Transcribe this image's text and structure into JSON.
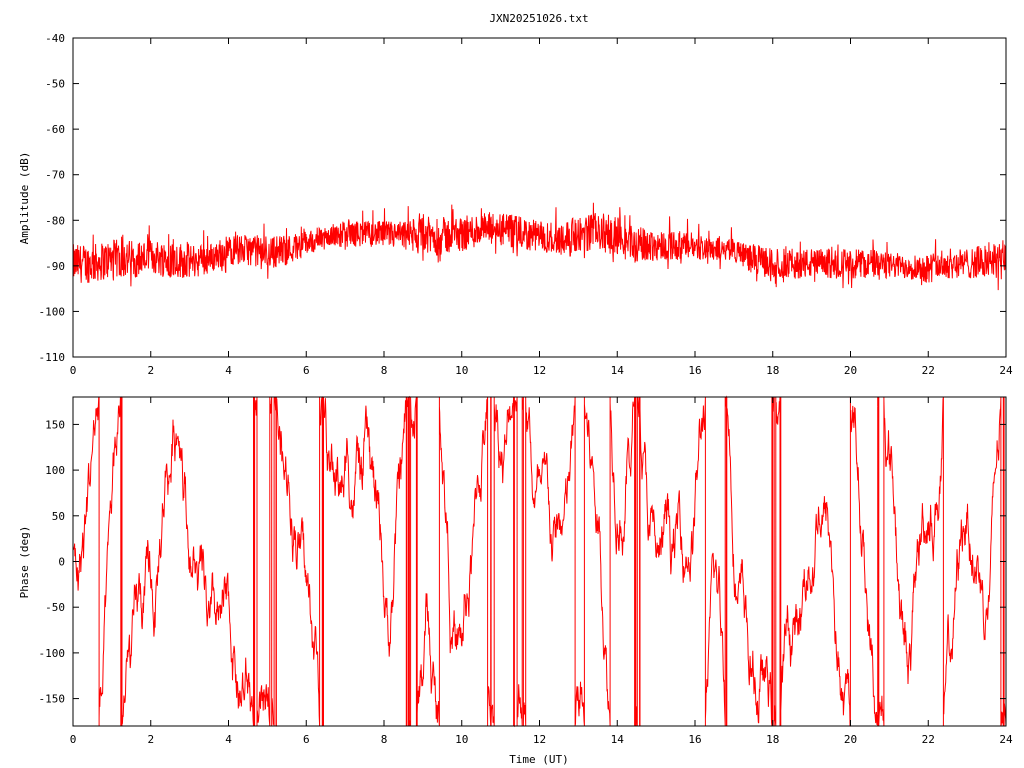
{
  "title": "JXN20251026.txt",
  "chart_data": [
    {
      "type": "line",
      "ylabel": "Amplitude (dB)",
      "xlabel": "",
      "xlim": [
        0,
        24
      ],
      "ylim": [
        -110,
        -40
      ],
      "xticks": [
        0,
        2,
        4,
        6,
        8,
        10,
        12,
        14,
        16,
        18,
        20,
        22,
        24
      ],
      "yticks": [
        -110,
        -100,
        -90,
        -80,
        -70,
        -60,
        -50,
        -40
      ],
      "color": "#ff0000",
      "envelope": {
        "x": [
          0,
          0.5,
          1,
          1.5,
          2,
          2.5,
          3,
          3.5,
          4,
          4.5,
          5,
          5.5,
          6,
          6.5,
          7,
          7.5,
          8,
          8.5,
          9,
          9.5,
          10,
          10.5,
          11,
          11.5,
          12,
          12.5,
          13,
          13.5,
          14,
          14.5,
          15,
          15.5,
          16,
          16.5,
          17,
          17.5,
          18,
          18.5,
          19,
          19.5,
          20,
          20.5,
          21,
          21.5,
          22,
          22.5,
          23,
          23.5,
          24
        ],
        "low": [
          -94,
          -94,
          -93,
          -93,
          -92,
          -93,
          -93,
          -92,
          -90,
          -90,
          -91,
          -90,
          -88,
          -86,
          -86,
          -86,
          -86,
          -87,
          -88,
          -88,
          -87,
          -86,
          -86,
          -87,
          -87,
          -88,
          -87,
          -87,
          -88,
          -90,
          -89,
          -89,
          -89,
          -89,
          -89,
          -92,
          -93,
          -93,
          -93,
          -93,
          -93,
          -93,
          -93,
          -93,
          -94,
          -93,
          -93,
          -93,
          -94
        ],
        "high": [
          -85,
          -85,
          -84,
          -84,
          -84,
          -84,
          -85,
          -85,
          -83,
          -83,
          -83,
          -83,
          -82,
          -81,
          -80,
          -80,
          -80,
          -80,
          -79,
          -79,
          -79,
          -78,
          -78,
          -79,
          -80,
          -80,
          -79,
          -78,
          -79,
          -81,
          -82,
          -82,
          -83,
          -83,
          -84,
          -85,
          -86,
          -86,
          -86,
          -86,
          -86,
          -86,
          -87,
          -87,
          -87,
          -86,
          -86,
          -85,
          -84
        ]
      }
    },
    {
      "type": "line",
      "ylabel": "Phase (deg)",
      "xlabel": "Time (UT)",
      "xlim": [
        0,
        24
      ],
      "ylim": [
        -180,
        180
      ],
      "xticks": [
        0,
        2,
        4,
        6,
        8,
        10,
        12,
        14,
        16,
        18,
        20,
        22,
        24
      ],
      "yticks": [
        -150,
        -100,
        -50,
        0,
        50,
        100,
        150
      ],
      "color": "#ff0000",
      "wrap_range": [
        -180,
        180
      ]
    }
  ]
}
